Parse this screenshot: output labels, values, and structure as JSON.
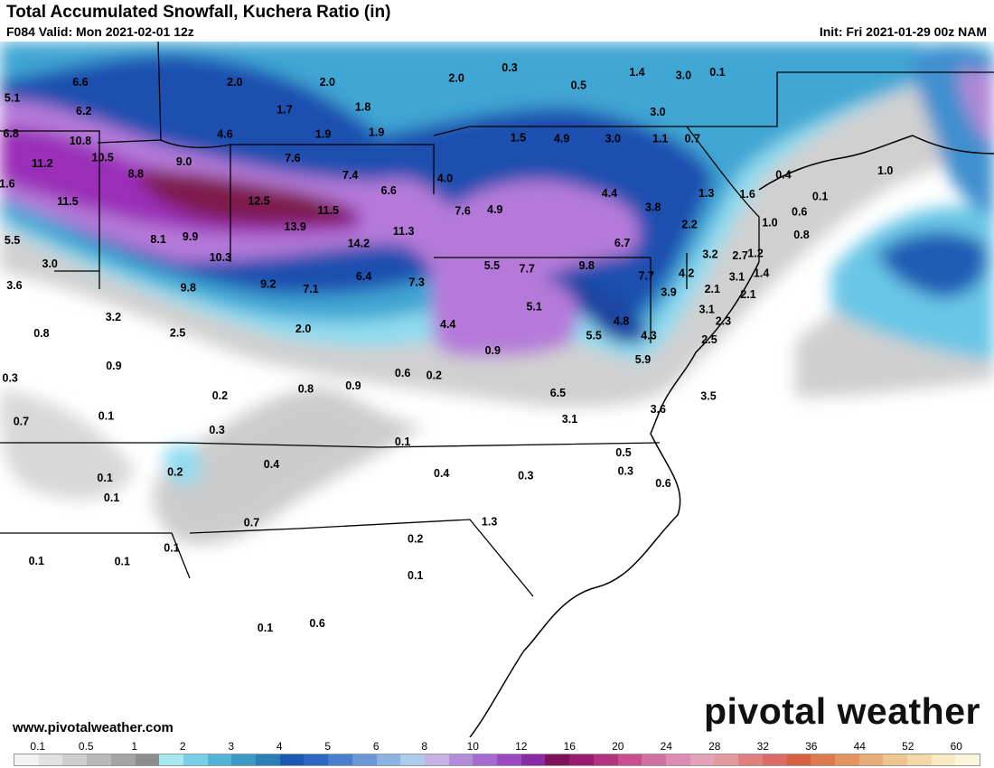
{
  "header": {
    "title": "Total Accumulated Snowfall, Kuchera Ratio (in)",
    "valid": "F084 Valid: Mon 2021-02-01 12z",
    "init": "Init: Fri 2021-01-29 00z NAM"
  },
  "footer": {
    "website": "www.pivotalweather.com",
    "brand": "pivotal weather"
  },
  "map_values": [
    {
      "label": "6.6",
      "lon": -90.55,
      "lat": 43.42
    },
    {
      "label": "5.1",
      "lon": -92.16,
      "lat": 43.12
    },
    {
      "label": "6.2",
      "lon": -90.47,
      "lat": 42.87
    },
    {
      "label": "6.8",
      "lon": -92.19,
      "lat": 42.44
    },
    {
      "label": "10.8",
      "lon": -90.55,
      "lat": 42.3
    },
    {
      "label": "11.2",
      "lon": -91.45,
      "lat": 41.87
    },
    {
      "label": "10.5",
      "lon": -90.02,
      "lat": 41.98
    },
    {
      "label": "8.8",
      "lon": -89.24,
      "lat": 41.67
    },
    {
      "label": "11.6",
      "lon": -92.35,
      "lat": 41.48
    },
    {
      "label": "11.5",
      "lon": -90.85,
      "lat": 41.14
    },
    {
      "label": "5.5",
      "lon": -92.16,
      "lat": 40.4
    },
    {
      "label": "3.0",
      "lon": -91.27,
      "lat": 39.95
    },
    {
      "label": "3.6",
      "lon": -92.11,
      "lat": 39.54
    },
    {
      "label": "0.8",
      "lon": -91.47,
      "lat": 38.62
    },
    {
      "label": "0.3",
      "lon": -92.21,
      "lat": 37.77
    },
    {
      "label": "0.7",
      "lon": -91.95,
      "lat": 36.94
    },
    {
      "label": "2.0",
      "lon": -86.9,
      "lat": 43.42
    },
    {
      "label": "1.7",
      "lon": -85.72,
      "lat": 42.9
    },
    {
      "label": "4.6",
      "lon": -87.13,
      "lat": 42.43
    },
    {
      "label": "9.0",
      "lon": -88.1,
      "lat": 41.9
    },
    {
      "label": "12.5",
      "lon": -86.33,
      "lat": 41.15
    },
    {
      "label": "8.1",
      "lon": -88.71,
      "lat": 40.42
    },
    {
      "label": "9.9",
      "lon": -87.95,
      "lat": 40.47
    },
    {
      "label": "10.3",
      "lon": -87.24,
      "lat": 40.07
    },
    {
      "label": "9.8",
      "lon": -88.0,
      "lat": 39.49
    },
    {
      "label": "9.2",
      "lon": -86.11,
      "lat": 39.56
    },
    {
      "label": "3.2",
      "lon": -89.77,
      "lat": 38.93
    },
    {
      "label": "2.5",
      "lon": -88.25,
      "lat": 38.63
    },
    {
      "label": "0.9",
      "lon": -89.76,
      "lat": 38.0
    },
    {
      "label": "0.2",
      "lon": -87.25,
      "lat": 37.43
    },
    {
      "label": "0.1",
      "lon": -89.94,
      "lat": 37.04
    },
    {
      "label": "0.3",
      "lon": -87.32,
      "lat": 36.77
    },
    {
      "label": "0.1",
      "lon": -89.97,
      "lat": 35.86
    },
    {
      "label": "0.2",
      "lon": -88.31,
      "lat": 35.97
    },
    {
      "label": "0.4",
      "lon": -86.03,
      "lat": 36.12
    },
    {
      "label": "0.1",
      "lon": -89.81,
      "lat": 35.48
    },
    {
      "label": "0.7",
      "lon": -86.5,
      "lat": 35.0
    },
    {
      "label": "0.1",
      "lon": -91.59,
      "lat": 34.27
    },
    {
      "label": "0.1",
      "lon": -89.56,
      "lat": 34.26
    },
    {
      "label": "0.1",
      "lon": -88.39,
      "lat": 34.52
    },
    {
      "label": "0.1",
      "lon": -86.18,
      "lat": 32.99
    },
    {
      "label": "0.6",
      "lon": -84.95,
      "lat": 33.08
    },
    {
      "label": "2.0",
      "lon": -84.71,
      "lat": 43.42
    },
    {
      "label": "1.8",
      "lon": -83.87,
      "lat": 42.95
    },
    {
      "label": "1.9",
      "lon": -84.81,
      "lat": 42.43
    },
    {
      "label": "1.9",
      "lon": -83.55,
      "lat": 42.46
    },
    {
      "label": "7.6",
      "lon": -85.53,
      "lat": 41.97
    },
    {
      "label": "7.4",
      "lon": -84.17,
      "lat": 41.64
    },
    {
      "label": "6.6",
      "lon": -83.26,
      "lat": 41.35
    },
    {
      "label": "13.9",
      "lon": -85.47,
      "lat": 40.66
    },
    {
      "label": "11.5",
      "lon": -84.69,
      "lat": 40.97
    },
    {
      "label": "14.2",
      "lon": -83.97,
      "lat": 40.34
    },
    {
      "label": "11.3",
      "lon": -82.91,
      "lat": 40.57
    },
    {
      "label": "6.4",
      "lon": -83.85,
      "lat": 39.71
    },
    {
      "label": "7.3",
      "lon": -82.6,
      "lat": 39.6
    },
    {
      "label": "7.1",
      "lon": -85.1,
      "lat": 39.47
    },
    {
      "label": "2.0",
      "lon": -85.28,
      "lat": 38.71
    },
    {
      "label": "0.8",
      "lon": -85.22,
      "lat": 37.56
    },
    {
      "label": "0.9",
      "lon": -84.1,
      "lat": 37.62
    },
    {
      "label": "0.6",
      "lon": -82.93,
      "lat": 37.86
    },
    {
      "label": "0.2",
      "lon": -82.19,
      "lat": 37.82
    },
    {
      "label": "0.1",
      "lon": -82.93,
      "lat": 36.55
    },
    {
      "label": "0.4",
      "lon": -82.01,
      "lat": 35.94
    },
    {
      "label": "1.3",
      "lon": -80.88,
      "lat": 35.02
    },
    {
      "label": "0.2",
      "lon": -82.63,
      "lat": 34.69
    },
    {
      "label": "0.1",
      "lon": -82.63,
      "lat": 33.99
    },
    {
      "label": "4.0",
      "lon": -81.93,
      "lat": 41.58
    },
    {
      "label": "7.6",
      "lon": -81.51,
      "lat": 40.96
    },
    {
      "label": "4.9",
      "lon": -80.75,
      "lat": 40.99
    },
    {
      "label": "5.5",
      "lon": -80.82,
      "lat": 39.92
    },
    {
      "label": "4.4",
      "lon": -81.86,
      "lat": 38.79
    },
    {
      "label": "0.9",
      "lon": -80.8,
      "lat": 38.29
    },
    {
      "label": "2.0",
      "lon": -81.66,
      "lat": 43.5
    },
    {
      "label": "0.3",
      "lon": -80.4,
      "lat": 43.7
    },
    {
      "label": "0.5",
      "lon": -78.77,
      "lat": 43.36
    },
    {
      "label": "1.5",
      "lon": -80.2,
      "lat": 42.36
    },
    {
      "label": "4.9",
      "lon": -79.17,
      "lat": 42.34
    },
    {
      "label": "3.0",
      "lon": -77.96,
      "lat": 42.34
    },
    {
      "label": "1.4",
      "lon": -77.39,
      "lat": 43.61
    },
    {
      "label": "3.0",
      "lon": -76.29,
      "lat": 43.55
    },
    {
      "label": "0.1",
      "lon": -75.49,
      "lat": 43.61
    },
    {
      "label": "3.0",
      "lon": -76.9,
      "lat": 42.85
    },
    {
      "label": "1.1",
      "lon": -76.84,
      "lat": 42.34
    },
    {
      "label": "0.7",
      "lon": -76.08,
      "lat": 42.34
    },
    {
      "label": "4.4",
      "lon": -78.04,
      "lat": 41.3
    },
    {
      "label": "3.8",
      "lon": -77.01,
      "lat": 41.03
    },
    {
      "label": "1.3",
      "lon": -75.75,
      "lat": 41.3
    },
    {
      "label": "2.2",
      "lon": -76.15,
      "lat": 40.7
    },
    {
      "label": "6.7",
      "lon": -77.74,
      "lat": 40.35
    },
    {
      "label": "9.8",
      "lon": -78.58,
      "lat": 39.92
    },
    {
      "label": "7.7",
      "lon": -79.99,
      "lat": 39.86
    },
    {
      "label": "7.7",
      "lon": -77.17,
      "lat": 39.72
    },
    {
      "label": "4.2",
      "lon": -76.22,
      "lat": 39.77
    },
    {
      "label": "3.9",
      "lon": -76.64,
      "lat": 39.41
    },
    {
      "label": "3.2",
      "lon": -75.66,
      "lat": 40.13
    },
    {
      "label": "2.1",
      "lon": -75.61,
      "lat": 39.47
    },
    {
      "label": "5.1",
      "lon": -79.82,
      "lat": 39.13
    },
    {
      "label": "4.8",
      "lon": -77.76,
      "lat": 38.85
    },
    {
      "label": "5.5",
      "lon": -78.41,
      "lat": 38.58
    },
    {
      "label": "4.3",
      "lon": -77.11,
      "lat": 38.58
    },
    {
      "label": "5.9",
      "lon": -77.25,
      "lat": 38.12
    },
    {
      "label": "6.5",
      "lon": -79.26,
      "lat": 37.48
    },
    {
      "label": "3.1",
      "lon": -78.98,
      "lat": 36.98
    },
    {
      "label": "3.6",
      "lon": -76.89,
      "lat": 37.17
    },
    {
      "label": "3.5",
      "lon": -75.7,
      "lat": 37.42
    },
    {
      "label": "3.1",
      "lon": -75.74,
      "lat": 39.08
    },
    {
      "label": "2.3",
      "lon": -75.35,
      "lat": 38.85
    },
    {
      "label": "2.5",
      "lon": -75.68,
      "lat": 38.5
    },
    {
      "label": "0.5",
      "lon": -77.71,
      "lat": 36.34
    },
    {
      "label": "0.3",
      "lon": -77.66,
      "lat": 35.99
    },
    {
      "label": "0.3",
      "lon": -80.02,
      "lat": 35.9
    },
    {
      "label": "0.6",
      "lon": -76.77,
      "lat": 35.75
    },
    {
      "label": "1.6",
      "lon": -74.78,
      "lat": 41.28
    },
    {
      "label": "0.4",
      "lon": -73.93,
      "lat": 41.65
    },
    {
      "label": "1.0",
      "lon": -74.25,
      "lat": 40.74
    },
    {
      "label": "2.7",
      "lon": -74.95,
      "lat": 40.11
    },
    {
      "label": "1.2",
      "lon": -74.59,
      "lat": 40.15
    },
    {
      "label": "1.4",
      "lon": -74.45,
      "lat": 39.77
    },
    {
      "label": "3.1",
      "lon": -75.03,
      "lat": 39.7
    },
    {
      "label": "2.1",
      "lon": -74.76,
      "lat": 39.36
    },
    {
      "label": "0.6",
      "lon": -73.55,
      "lat": 40.94
    },
    {
      "label": "0.8",
      "lon": -73.5,
      "lat": 40.5
    },
    {
      "label": "0.1",
      "lon": -73.06,
      "lat": 41.24
    },
    {
      "label": "1.0",
      "lon": -71.52,
      "lat": 41.73
    }
  ],
  "legend": {
    "labels": [
      "0.1",
      "0.5",
      "1",
      "2",
      "3",
      "4",
      "5",
      "6",
      "8",
      "10",
      "12",
      "16",
      "20",
      "24",
      "28",
      "32",
      "36",
      "44",
      "52",
      "60"
    ],
    "colors": [
      "#f2f2f2",
      "#e2e2e2",
      "#cfcfcf",
      "#b9b9b9",
      "#a4a4a4",
      "#8d8d8d",
      "#a6e7f2",
      "#79cfe5",
      "#52b4d7",
      "#3c9ac6",
      "#2a80b6",
      "#1a5ab2",
      "#2c67c4",
      "#4a7fcf",
      "#6a98d9",
      "#8bb3e2",
      "#abcdeb",
      "#c6b3e6",
      "#b38dda",
      "#a56bd0",
      "#9a4bc4",
      "#8a2aa5",
      "#7e1259",
      "#991a6e",
      "#b4327e",
      "#c84e8f",
      "#d46fa2",
      "#dd8cb4",
      "#e5a3b9",
      "#e59aa0",
      "#e0817f",
      "#dc6b65",
      "#d9603f",
      "#df7a4d",
      "#e5945f",
      "#eaad78",
      "#efc58f",
      "#f4d8a7",
      "#f8e9c3",
      "#fbf5dc"
    ]
  }
}
